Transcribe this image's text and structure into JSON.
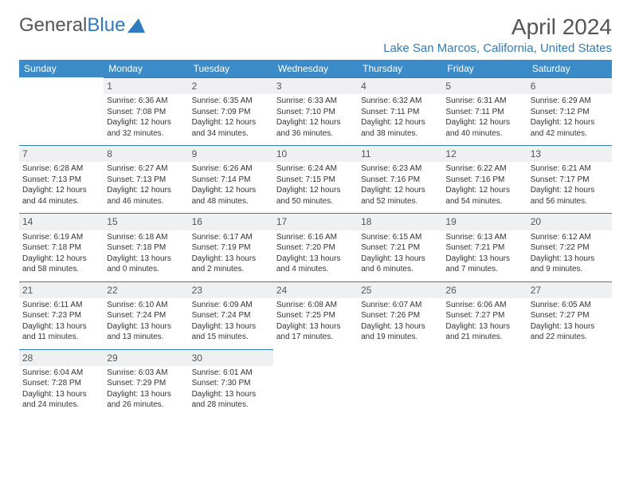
{
  "logo": {
    "text1": "General",
    "text2": "Blue"
  },
  "title": "April 2024",
  "location": "Lake San Marcos, California, United States",
  "colors": {
    "header_bg": "#3b8bc9",
    "header_text": "#ffffff",
    "accent": "#2f7bbf",
    "daynum_bg": "#eef0f1",
    "text": "#333333",
    "page_bg": "#ffffff"
  },
  "weekdays": [
    "Sunday",
    "Monday",
    "Tuesday",
    "Wednesday",
    "Thursday",
    "Friday",
    "Saturday"
  ],
  "weeks": [
    [
      null,
      {
        "n": "1",
        "sr": "Sunrise: 6:36 AM",
        "ss": "Sunset: 7:08 PM",
        "d1": "Daylight: 12 hours",
        "d2": "and 32 minutes."
      },
      {
        "n": "2",
        "sr": "Sunrise: 6:35 AM",
        "ss": "Sunset: 7:09 PM",
        "d1": "Daylight: 12 hours",
        "d2": "and 34 minutes."
      },
      {
        "n": "3",
        "sr": "Sunrise: 6:33 AM",
        "ss": "Sunset: 7:10 PM",
        "d1": "Daylight: 12 hours",
        "d2": "and 36 minutes."
      },
      {
        "n": "4",
        "sr": "Sunrise: 6:32 AM",
        "ss": "Sunset: 7:11 PM",
        "d1": "Daylight: 12 hours",
        "d2": "and 38 minutes."
      },
      {
        "n": "5",
        "sr": "Sunrise: 6:31 AM",
        "ss": "Sunset: 7:11 PM",
        "d1": "Daylight: 12 hours",
        "d2": "and 40 minutes."
      },
      {
        "n": "6",
        "sr": "Sunrise: 6:29 AM",
        "ss": "Sunset: 7:12 PM",
        "d1": "Daylight: 12 hours",
        "d2": "and 42 minutes."
      }
    ],
    [
      {
        "n": "7",
        "sr": "Sunrise: 6:28 AM",
        "ss": "Sunset: 7:13 PM",
        "d1": "Daylight: 12 hours",
        "d2": "and 44 minutes."
      },
      {
        "n": "8",
        "sr": "Sunrise: 6:27 AM",
        "ss": "Sunset: 7:13 PM",
        "d1": "Daylight: 12 hours",
        "d2": "and 46 minutes."
      },
      {
        "n": "9",
        "sr": "Sunrise: 6:26 AM",
        "ss": "Sunset: 7:14 PM",
        "d1": "Daylight: 12 hours",
        "d2": "and 48 minutes."
      },
      {
        "n": "10",
        "sr": "Sunrise: 6:24 AM",
        "ss": "Sunset: 7:15 PM",
        "d1": "Daylight: 12 hours",
        "d2": "and 50 minutes."
      },
      {
        "n": "11",
        "sr": "Sunrise: 6:23 AM",
        "ss": "Sunset: 7:16 PM",
        "d1": "Daylight: 12 hours",
        "d2": "and 52 minutes."
      },
      {
        "n": "12",
        "sr": "Sunrise: 6:22 AM",
        "ss": "Sunset: 7:16 PM",
        "d1": "Daylight: 12 hours",
        "d2": "and 54 minutes."
      },
      {
        "n": "13",
        "sr": "Sunrise: 6:21 AM",
        "ss": "Sunset: 7:17 PM",
        "d1": "Daylight: 12 hours",
        "d2": "and 56 minutes."
      }
    ],
    [
      {
        "n": "14",
        "sr": "Sunrise: 6:19 AM",
        "ss": "Sunset: 7:18 PM",
        "d1": "Daylight: 12 hours",
        "d2": "and 58 minutes."
      },
      {
        "n": "15",
        "sr": "Sunrise: 6:18 AM",
        "ss": "Sunset: 7:18 PM",
        "d1": "Daylight: 13 hours",
        "d2": "and 0 minutes."
      },
      {
        "n": "16",
        "sr": "Sunrise: 6:17 AM",
        "ss": "Sunset: 7:19 PM",
        "d1": "Daylight: 13 hours",
        "d2": "and 2 minutes."
      },
      {
        "n": "17",
        "sr": "Sunrise: 6:16 AM",
        "ss": "Sunset: 7:20 PM",
        "d1": "Daylight: 13 hours",
        "d2": "and 4 minutes."
      },
      {
        "n": "18",
        "sr": "Sunrise: 6:15 AM",
        "ss": "Sunset: 7:21 PM",
        "d1": "Daylight: 13 hours",
        "d2": "and 6 minutes."
      },
      {
        "n": "19",
        "sr": "Sunrise: 6:13 AM",
        "ss": "Sunset: 7:21 PM",
        "d1": "Daylight: 13 hours",
        "d2": "and 7 minutes."
      },
      {
        "n": "20",
        "sr": "Sunrise: 6:12 AM",
        "ss": "Sunset: 7:22 PM",
        "d1": "Daylight: 13 hours",
        "d2": "and 9 minutes."
      }
    ],
    [
      {
        "n": "21",
        "sr": "Sunrise: 6:11 AM",
        "ss": "Sunset: 7:23 PM",
        "d1": "Daylight: 13 hours",
        "d2": "and 11 minutes."
      },
      {
        "n": "22",
        "sr": "Sunrise: 6:10 AM",
        "ss": "Sunset: 7:24 PM",
        "d1": "Daylight: 13 hours",
        "d2": "and 13 minutes."
      },
      {
        "n": "23",
        "sr": "Sunrise: 6:09 AM",
        "ss": "Sunset: 7:24 PM",
        "d1": "Daylight: 13 hours",
        "d2": "and 15 minutes."
      },
      {
        "n": "24",
        "sr": "Sunrise: 6:08 AM",
        "ss": "Sunset: 7:25 PM",
        "d1": "Daylight: 13 hours",
        "d2": "and 17 minutes."
      },
      {
        "n": "25",
        "sr": "Sunrise: 6:07 AM",
        "ss": "Sunset: 7:26 PM",
        "d1": "Daylight: 13 hours",
        "d2": "and 19 minutes."
      },
      {
        "n": "26",
        "sr": "Sunrise: 6:06 AM",
        "ss": "Sunset: 7:27 PM",
        "d1": "Daylight: 13 hours",
        "d2": "and 21 minutes."
      },
      {
        "n": "27",
        "sr": "Sunrise: 6:05 AM",
        "ss": "Sunset: 7:27 PM",
        "d1": "Daylight: 13 hours",
        "d2": "and 22 minutes."
      }
    ],
    [
      {
        "n": "28",
        "sr": "Sunrise: 6:04 AM",
        "ss": "Sunset: 7:28 PM",
        "d1": "Daylight: 13 hours",
        "d2": "and 24 minutes."
      },
      {
        "n": "29",
        "sr": "Sunrise: 6:03 AM",
        "ss": "Sunset: 7:29 PM",
        "d1": "Daylight: 13 hours",
        "d2": "and 26 minutes."
      },
      {
        "n": "30",
        "sr": "Sunrise: 6:01 AM",
        "ss": "Sunset: 7:30 PM",
        "d1": "Daylight: 13 hours",
        "d2": "and 28 minutes."
      },
      null,
      null,
      null,
      null
    ]
  ]
}
